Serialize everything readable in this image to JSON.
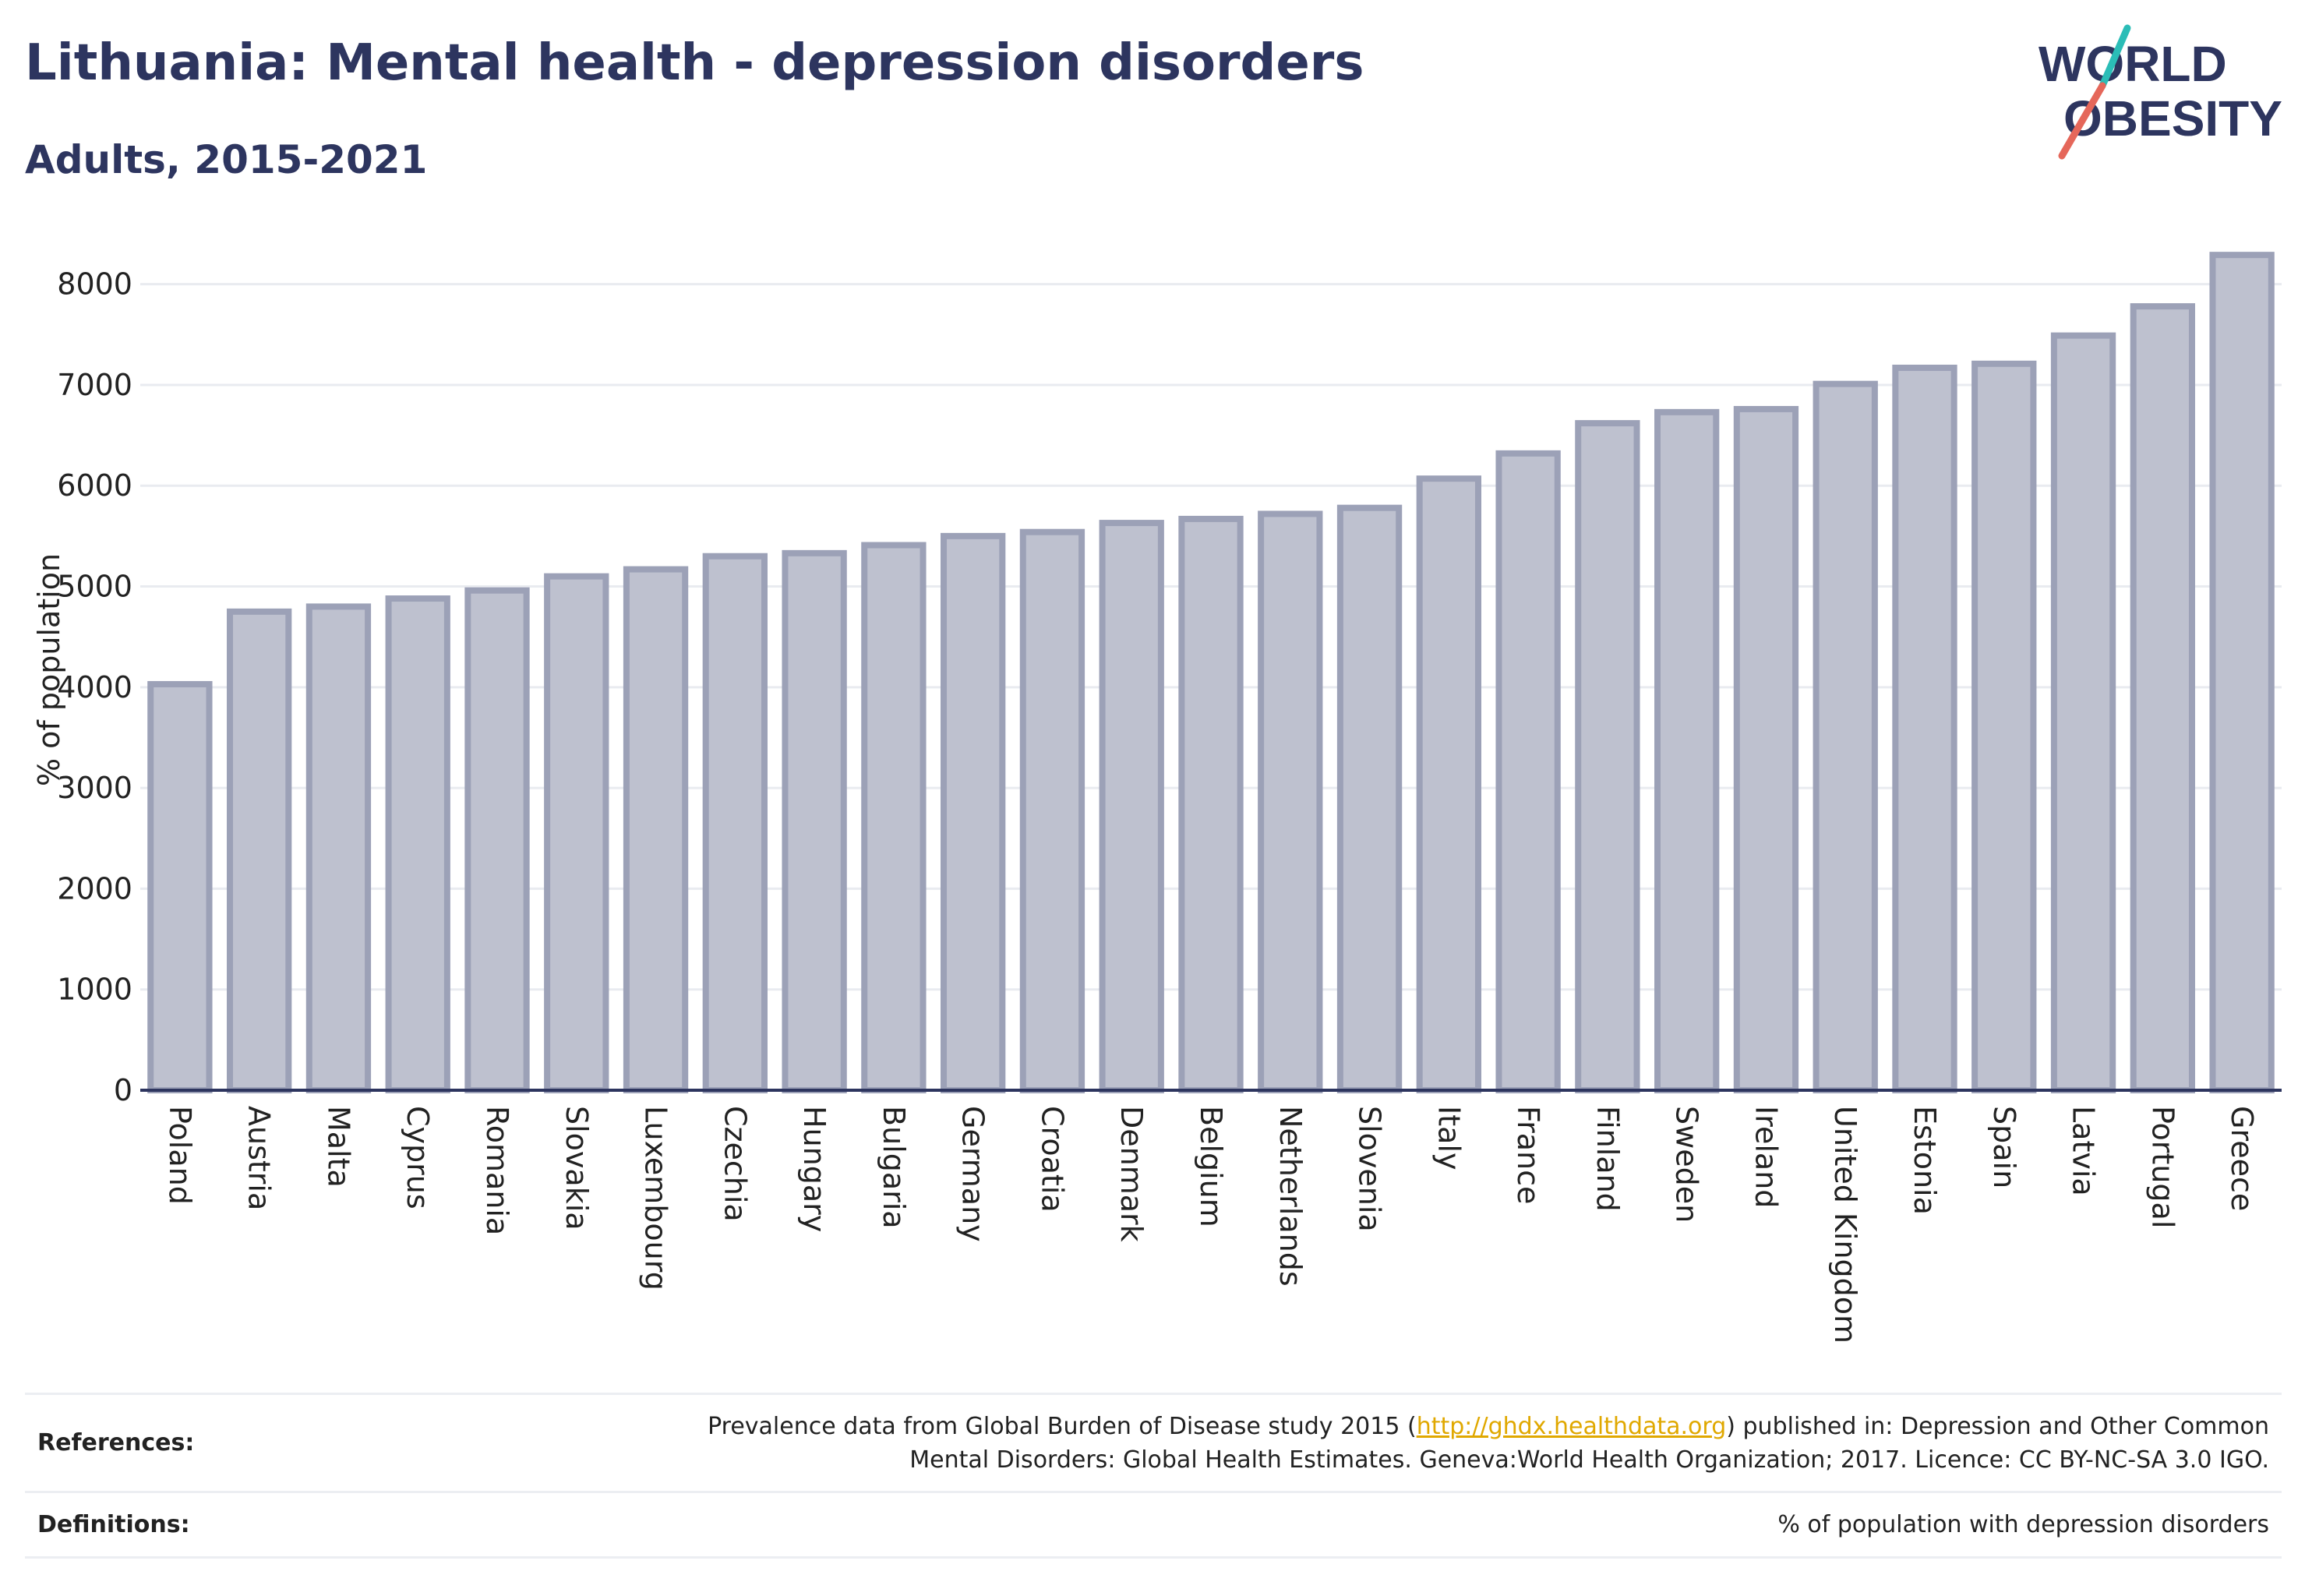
{
  "header": {
    "title": "Lithuania: Mental health - depression disorders",
    "subtitle": "Adults, 2015-2021"
  },
  "logo": {
    "line1": "WORLD",
    "line2": "OBESITY",
    "colors": {
      "text": "#2d355f",
      "slash_top": "#2bbdb7",
      "slash_bottom": "#e5675a"
    }
  },
  "chart_data": {
    "type": "bar",
    "title": "",
    "xlabel": "",
    "ylabel": "% of population",
    "ylim": [
      0,
      8500
    ],
    "yticks": [
      0,
      1000,
      2000,
      3000,
      4000,
      5000,
      6000,
      7000,
      8000
    ],
    "grid": true,
    "categories": [
      "Poland",
      "Austria",
      "Malta",
      "Cyprus",
      "Romania",
      "Slovakia",
      "Luxembourg",
      "Czechia",
      "Hungary",
      "Bulgaria",
      "Germany",
      "Croatia",
      "Denmark",
      "Belgium",
      "Netherlands",
      "Slovenia",
      "Italy",
      "France",
      "Finland",
      "Sweden",
      "Ireland",
      "United Kingdom",
      "Estonia",
      "Spain",
      "Latvia",
      "Portugal",
      "Greece"
    ],
    "values": [
      4030,
      4750,
      4800,
      4880,
      4960,
      5100,
      5170,
      5300,
      5330,
      5410,
      5500,
      5540,
      5630,
      5670,
      5720,
      5780,
      6070,
      6320,
      6620,
      6730,
      6760,
      7010,
      7170,
      7210,
      7490,
      7780,
      8290
    ],
    "colors": {
      "bar_fill": "#bec1cf",
      "bar_stroke": "#9ca1b7",
      "grid": "#e9ebf0",
      "axis": "#2d355f",
      "tick_text": "#222222"
    }
  },
  "references": {
    "label": "References:",
    "text_before_link": "Prevalence data from Global Burden of Disease study 2015 (",
    "link": "http://ghdx.healthdata.org",
    "text_after_link": ") published in: Depression and Other Common",
    "line2": "Mental Disorders: Global Health Estimates. Geneva:World Health Organization; 2017. Licence: CC BY-NC-SA 3.0 IGO."
  },
  "definitions": {
    "label": "Definitions:",
    "text": "% of population with depression disorders"
  }
}
